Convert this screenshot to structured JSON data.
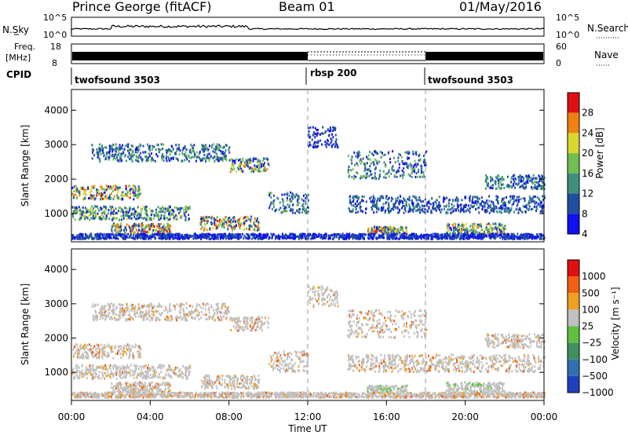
{
  "header": {
    "title": "Prince George (fitACF)",
    "beam": "Beam 01",
    "date": "01/May/2016"
  },
  "chart_data": [
    {
      "type": "line",
      "name": "noise-panel",
      "left_label": "N.Sky",
      "right_label": "N.Search",
      "left_ticks": [
        "10^5",
        "10^0"
      ],
      "right_ticks": [
        "10^5",
        "10^0"
      ]
    },
    {
      "type": "line",
      "name": "frequency-panel",
      "left_label_line1": "Freq.",
      "left_label_line2": "[MHz]",
      "left_ticks": [
        18,
        8
      ],
      "right_label": "Nave",
      "right_ticks": [
        60,
        0
      ]
    },
    {
      "type": "table",
      "name": "cpid-strip",
      "label": "CPID",
      "segments": [
        {
          "label": "twofsound 3503",
          "start_hour": 0.0
        },
        {
          "label": "rbsp 200",
          "start_hour": 12.0
        },
        {
          "label": "twofsound 3503",
          "start_hour": 18.0
        }
      ]
    },
    {
      "type": "heatmap",
      "name": "power",
      "ylabel": "Slant Range [km]",
      "ylim": [
        180,
        4600
      ],
      "yticks": [
        1000,
        2000,
        3000,
        4000
      ],
      "colorbar_label": "Power [dB]",
      "colorbar_ticks": [
        4,
        8,
        12,
        16,
        20,
        24,
        28
      ],
      "colorbar_range": [
        0,
        32
      ],
      "colors": [
        "#1010f0",
        "#1f4f9f",
        "#3f8f7f",
        "#70bf50",
        "#d8d830",
        "#f08010",
        "#e01010"
      ]
    },
    {
      "type": "heatmap",
      "name": "velocity",
      "ylabel": "Slant Range [km]",
      "ylim": [
        180,
        4600
      ],
      "yticks": [
        1000,
        2000,
        3000,
        4000
      ],
      "colorbar_label": "Velocity [m s⁻¹]",
      "colorbar_ticks": [
        "1000",
        "500",
        "100",
        "25",
        "−25",
        "−100",
        "−500",
        "−1000"
      ],
      "colors": [
        "#2040c0",
        "#3070b0",
        "#409060",
        "#60c040",
        "#c0c0c0",
        "#f0a020",
        "#f06010",
        "#e01010"
      ]
    }
  ],
  "time_axis": {
    "xlabel": "Time UT",
    "ticks": [
      "00:00",
      "04:00",
      "08:00",
      "12:00",
      "16:00",
      "20:00",
      "00:00"
    ],
    "xlim_hours": [
      0,
      24
    ]
  }
}
